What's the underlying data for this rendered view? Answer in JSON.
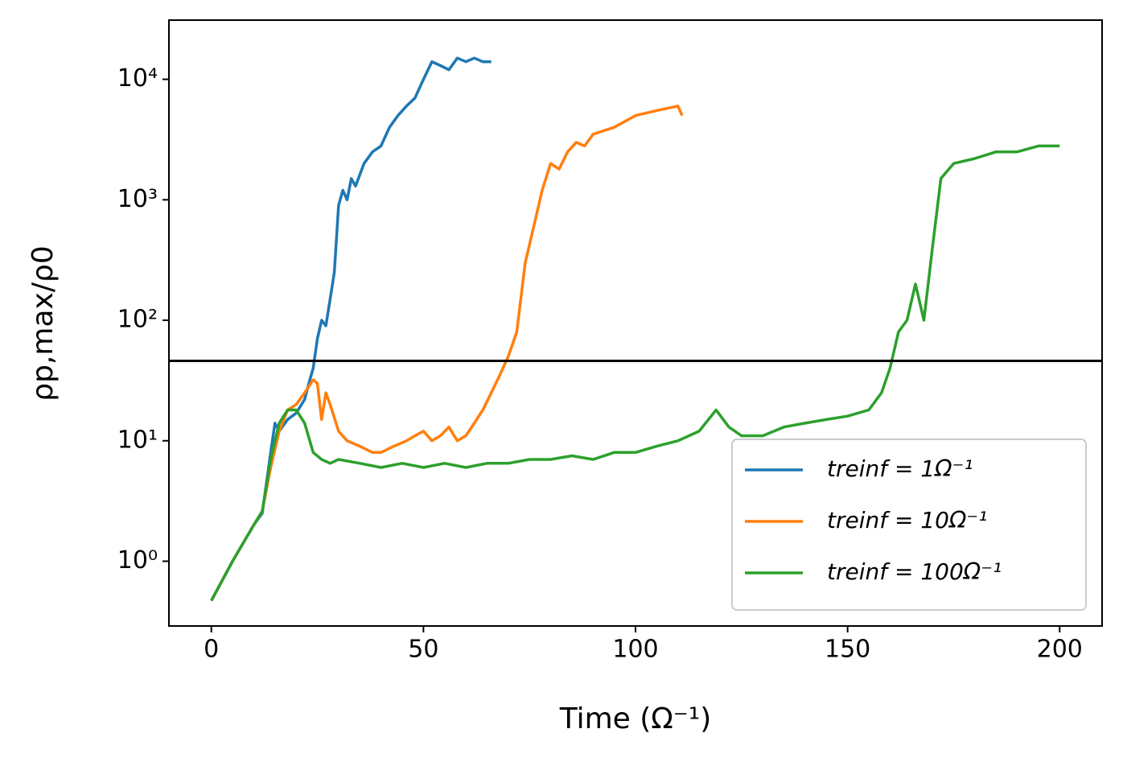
{
  "chart_data": {
    "type": "line",
    "xlabel": "Time (Ω⁻¹)",
    "ylabel": "ρp,max/ρ0",
    "xlim": [
      -10,
      210
    ],
    "xticks": [
      0,
      50,
      100,
      150,
      200
    ],
    "ylim": [
      0.29,
      31000
    ],
    "log_y": true,
    "yticks": [
      {
        "value": 1,
        "label": "10⁰"
      },
      {
        "value": 10,
        "label": "10¹"
      },
      {
        "value": 100,
        "label": "10²"
      },
      {
        "value": 1000,
        "label": "10³"
      },
      {
        "value": 10000,
        "label": "10⁴"
      }
    ],
    "hline": 46,
    "hline_color": "#000000",
    "legend": "lower right",
    "series": [
      {
        "name": "treinf = 1Ω⁻¹",
        "color": "#1f77b4",
        "x": [
          0,
          5,
          10,
          12,
          14,
          15,
          16,
          18,
          20,
          22,
          23,
          24,
          25,
          26,
          27,
          28,
          29,
          30,
          31,
          32,
          33,
          34,
          36,
          38,
          40,
          42,
          44,
          46,
          48,
          50,
          52,
          54,
          56,
          58,
          60,
          62,
          64,
          66
        ],
        "values": [
          0.47,
          1,
          2,
          2.5,
          8,
          14,
          12,
          15,
          17,
          22,
          30,
          40,
          70,
          100,
          90,
          150,
          250,
          900,
          1200,
          1000,
          1500,
          1300,
          2000,
          2500,
          2800,
          4000,
          5000,
          6000,
          7000,
          10000,
          14000,
          13000,
          12000,
          15000,
          14000,
          15000,
          14000,
          14000
        ]
      },
      {
        "name": "treinf = 10Ω⁻¹",
        "color": "#ff7f0e",
        "x": [
          0,
          5,
          10,
          12,
          14,
          16,
          18,
          20,
          22,
          24,
          25,
          26,
          27,
          28,
          30,
          32,
          35,
          38,
          40,
          43,
          46,
          48,
          50,
          52,
          54,
          56,
          58,
          60,
          62,
          64,
          66,
          68,
          70,
          72,
          74,
          76,
          78,
          80,
          82,
          84,
          86,
          88,
          90,
          95,
          100,
          105,
          110,
          111
        ],
        "values": [
          0.47,
          1,
          2,
          2.6,
          6,
          12,
          18,
          20,
          25,
          32,
          30,
          15,
          25,
          20,
          12,
          10,
          9,
          8,
          8,
          9,
          10,
          11,
          12,
          10,
          11,
          13,
          10,
          11,
          14,
          18,
          25,
          35,
          50,
          80,
          300,
          600,
          1200,
          2000,
          1800,
          2500,
          3000,
          2800,
          3500,
          4000,
          5000,
          5500,
          6000,
          5000
        ]
      },
      {
        "name": "treinf = 100Ω⁻¹",
        "color": "#2ca02c",
        "x": [
          0,
          5,
          10,
          12,
          14,
          16,
          18,
          20,
          22,
          24,
          26,
          28,
          30,
          35,
          40,
          45,
          50,
          55,
          60,
          65,
          70,
          75,
          80,
          85,
          90,
          95,
          100,
          105,
          110,
          115,
          119,
          122,
          125,
          130,
          135,
          140,
          145,
          150,
          155,
          158,
          160,
          162,
          164,
          166,
          168,
          170,
          172,
          175,
          180,
          185,
          190,
          195,
          200
        ],
        "values": [
          0.47,
          1,
          2,
          2.6,
          7,
          14,
          18,
          18,
          14,
          8,
          7,
          6.5,
          7,
          6.5,
          6,
          6.5,
          6,
          6.5,
          6,
          6.5,
          6.5,
          7,
          7,
          7.5,
          7,
          8,
          8,
          9,
          10,
          12,
          18,
          13,
          11,
          11,
          13,
          14,
          15,
          16,
          18,
          25,
          40,
          80,
          100,
          200,
          100,
          400,
          1500,
          2000,
          2200,
          2500,
          2500,
          2800,
          2800
        ]
      }
    ]
  }
}
